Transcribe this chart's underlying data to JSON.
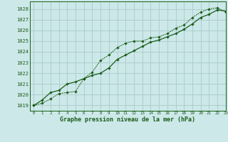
{
  "title": "Graphe pression niveau de la mer (hPa)",
  "bg_color": "#cce8e8",
  "grid_color": "#aacaca",
  "line_color": "#1a5c1a",
  "marker_color": "#1a5c1a",
  "xlim": [
    -0.5,
    23
  ],
  "ylim": [
    1018.5,
    1028.7
  ],
  "yticks": [
    1019,
    1020,
    1021,
    1022,
    1023,
    1024,
    1025,
    1026,
    1027,
    1028
  ],
  "xticks": [
    0,
    1,
    2,
    3,
    4,
    5,
    6,
    7,
    8,
    9,
    10,
    11,
    12,
    13,
    14,
    15,
    16,
    17,
    18,
    19,
    20,
    21,
    22,
    23
  ],
  "series1_x": [
    0,
    1,
    2,
    3,
    4,
    5,
    6,
    7,
    8,
    9,
    10,
    11,
    12,
    13,
    14,
    15,
    16,
    17,
    18,
    19,
    20,
    21,
    22,
    23
  ],
  "series1_y": [
    1019.0,
    1019.2,
    1019.6,
    1020.1,
    1020.2,
    1020.3,
    1021.5,
    1022.1,
    1023.2,
    1023.7,
    1024.4,
    1024.8,
    1025.0,
    1025.0,
    1025.3,
    1025.4,
    1025.7,
    1026.2,
    1026.5,
    1027.2,
    1027.7,
    1028.0,
    1028.1,
    1027.7
  ],
  "series2_x": [
    0,
    1,
    2,
    3,
    4,
    5,
    6,
    7,
    8,
    9,
    10,
    11,
    12,
    13,
    14,
    15,
    16,
    17,
    18,
    19,
    20,
    21,
    22,
    23
  ],
  "series2_y": [
    1019.0,
    1019.5,
    1020.2,
    1020.4,
    1021.0,
    1021.2,
    1021.5,
    1021.8,
    1022.0,
    1022.5,
    1023.3,
    1023.7,
    1024.1,
    1024.5,
    1024.9,
    1025.1,
    1025.4,
    1025.7,
    1026.1,
    1026.6,
    1027.2,
    1027.5,
    1027.9,
    1027.8
  ]
}
